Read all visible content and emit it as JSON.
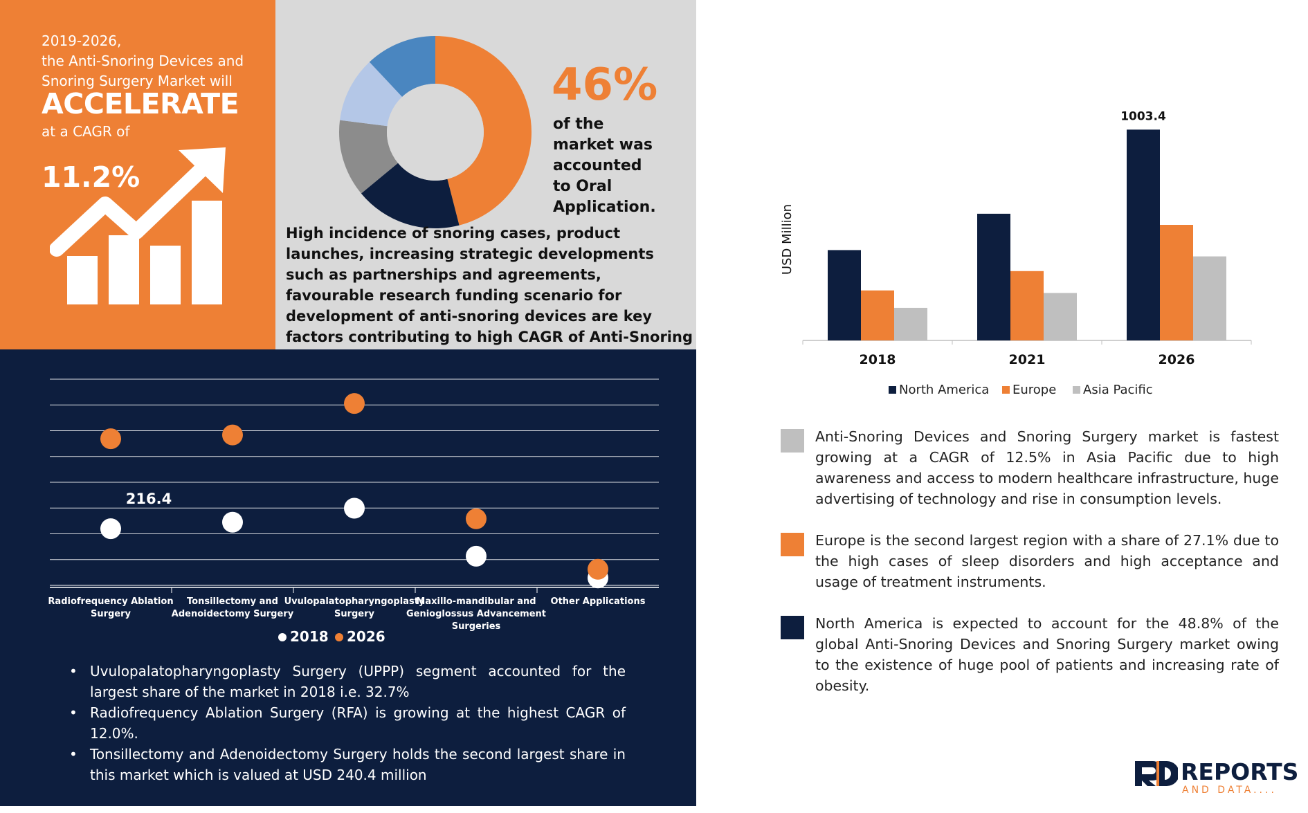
{
  "headline": {
    "intro_line1": "2019-2026,",
    "intro_line2": "the Anti-Snoring Devices and",
    "intro_line3": "Snoring Surgery Market will",
    "accelerate": "ACCELERATE",
    "cagr_label": "at a CAGR of",
    "cagr_value": "11.2%"
  },
  "donut": {
    "percent": "46%",
    "caption": "of the market was accounted to Oral Application.",
    "slices": [
      {
        "value": 46,
        "color": "#ee8035"
      },
      {
        "value": 18,
        "color": "#0d1e3e"
      },
      {
        "value": 13,
        "color": "#8c8c8c"
      },
      {
        "value": 11,
        "color": "#b4c7e7"
      },
      {
        "value": 12,
        "color": "#4a86c0"
      }
    ]
  },
  "gray_paragraph": "High incidence of snoring cases, product launches, increasing strategic developments such as partnerships and agreements, favourable research funding scenario for development of anti-snoring devices are key factors contributing to high CAGR of Anti-Snoring Devices And Snoring Surgery during forecast period.",
  "chart_data": [
    {
      "type": "scatter",
      "categories": [
        "Radiofrequency Ablation Surgery",
        "Tonsillectomy and Adenoidectomy Surgery",
        "Uvulopalatopharyngoplasty Surgery",
        "Maxillo-mandibular and Genioglossus Advancement Surgeries",
        "Other Applications"
      ],
      "series": [
        {
          "name": "2018",
          "color": "#ffffff",
          "values": [
            216.4,
            240.4,
            292,
            115,
            35
          ]
        },
        {
          "name": "2026",
          "color": "#ee8035",
          "values": [
            548,
            562,
            678,
            253,
            67
          ]
        }
      ],
      "data_labels": [
        {
          "series": "2018",
          "index": 0,
          "text": "216.4"
        }
      ],
      "ylim": [
        0,
        760
      ],
      "grid": true,
      "legend": "bottom"
    },
    {
      "type": "bar",
      "categories": [
        "2018",
        "2021",
        "2026"
      ],
      "series": [
        {
          "name": "North America",
          "color": "#0d1e3e",
          "values": [
            430,
            603,
            1003.4
          ]
        },
        {
          "name": "Europe",
          "color": "#ee8035",
          "values": [
            238,
            330,
            550
          ]
        },
        {
          "name": "Asia Pacific",
          "color": "#bfbfbf",
          "values": [
            155,
            226,
            400
          ]
        }
      ],
      "data_labels": [
        {
          "series": "North America",
          "index": 2,
          "text": "1003.4"
        }
      ],
      "ylabel": "USD Million",
      "ylim": [
        0,
        1100
      ],
      "grid": false,
      "legend": "bottom"
    }
  ],
  "navy_bullets": [
    "Uvulopalatopharyngoplasty Surgery (UPPP) segment accounted for the largest share of the market in 2018 i.e. 32.7%",
    "Radiofrequency Ablation Surgery (RFA) is growing at the highest CAGR of 12.0%.",
    "Tonsillectomy and Adenoidectomy Surgery holds the second largest share in this market which is valued at USD 240.4 million"
  ],
  "notes": [
    {
      "color": "#bfbfbf",
      "text": "Anti-Snoring Devices and Snoring Surgery market is fastest growing at a CAGR of 12.5% in Asia Pacific due to high awareness and access to modern healthcare infrastructure, huge advertising of technology and rise in consumption levels."
    },
    {
      "color": "#ee8035",
      "text": "Europe is the second largest region with a share of 27.1% due to the high cases of sleep disorders and high acceptance and usage of treatment instruments."
    },
    {
      "color": "#0d1e3e",
      "text": "North America is expected to account for the 48.8% of the global Anti-Snoring Devices and Snoring Surgery market owing to the existence of huge pool of patients and increasing rate of obesity."
    }
  ],
  "logo": {
    "title": "REPORTS",
    "subtitle": "AND DATA...."
  }
}
